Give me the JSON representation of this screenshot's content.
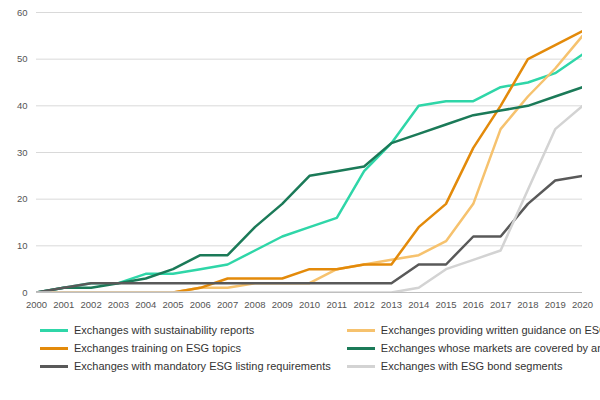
{
  "chart_data": {
    "type": "line",
    "x": [
      2000,
      2001,
      2002,
      2003,
      2004,
      2005,
      2006,
      2007,
      2008,
      2009,
      2010,
      2011,
      2012,
      2013,
      2014,
      2015,
      2016,
      2017,
      2018,
      2019,
      2020
    ],
    "xlim": [
      2000,
      2020
    ],
    "xticks": [
      2000,
      2001,
      2002,
      2003,
      2004,
      2005,
      2006,
      2007,
      2008,
      2009,
      2010,
      2011,
      2012,
      2013,
      2014,
      2015,
      2016,
      2017,
      2018,
      2019,
      2020
    ],
    "ylim": [
      0,
      60
    ],
    "yticks": [
      0,
      10,
      20,
      30,
      40,
      50,
      60
    ],
    "grid": true,
    "legend": "bottom",
    "series": [
      {
        "name": "Exchanges with sustainability reports",
        "color": "#2fd6a8",
        "values": [
          0,
          1,
          2,
          2,
          4,
          4,
          5,
          6,
          9,
          12,
          14,
          16,
          26,
          32,
          40,
          41,
          41,
          44,
          45,
          47,
          51
        ]
      },
      {
        "name": "Exchanges providing written guidance on ESG reporting",
        "color": "#f6c26e",
        "values": [
          0,
          0,
          0,
          0,
          0,
          0,
          1,
          1,
          2,
          2,
          2,
          5,
          6,
          7,
          8,
          11,
          19,
          35,
          42,
          48,
          55
        ]
      },
      {
        "name": "Exchanges training on ESG topics",
        "color": "#e38a0a",
        "values": [
          0,
          0,
          0,
          0,
          0,
          0,
          1,
          3,
          3,
          3,
          5,
          5,
          6,
          6,
          14,
          19,
          31,
          40,
          50,
          53,
          56
        ]
      },
      {
        "name": "Exchanges whose markets are covered by an ESG index",
        "color": "#1b7a58",
        "values": [
          0,
          1,
          1,
          2,
          3,
          5,
          8,
          8,
          14,
          19,
          25,
          26,
          27,
          32,
          34,
          36,
          38,
          39,
          40,
          42,
          44
        ]
      },
      {
        "name": "Exchanges with mandatory ESG listing requirements",
        "color": "#595959",
        "values": [
          0,
          1,
          2,
          2,
          2,
          2,
          2,
          2,
          2,
          2,
          2,
          2,
          2,
          2,
          6,
          6,
          12,
          12,
          19,
          24,
          25
        ]
      },
      {
        "name": "Exchanges with ESG bond segments",
        "color": "#d3d3d3",
        "values": [
          0,
          0,
          0,
          0,
          0,
          0,
          0,
          0,
          0,
          0,
          0,
          0,
          0,
          0,
          1,
          5,
          7,
          9,
          22,
          35,
          40
        ]
      }
    ]
  }
}
